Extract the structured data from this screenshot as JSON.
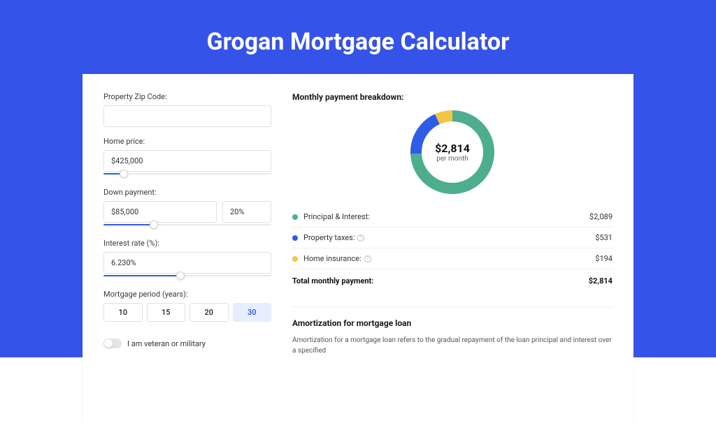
{
  "colors": {
    "page_bg": "#3553e8",
    "card_bg": "#ffffff",
    "input_border": "#dcdfe6",
    "text": "#333333",
    "title_text": "#ffffff",
    "accent_blue": "#2f5ce6",
    "period_active_bg": "#e7eeff",
    "slider_track": "#e8e8e8",
    "divider": "#f0f0f0",
    "info_icon": "#bbbbbb"
  },
  "title": "Grogan Mortgage Calculator",
  "form": {
    "zip": {
      "label": "Property Zip Code:",
      "value": ""
    },
    "home_price": {
      "label": "Home price:",
      "value": "$425,000",
      "slider_pct": 12
    },
    "down_payment": {
      "label": "Down payment:",
      "value": "$85,000",
      "pct": "20%",
      "slider_pct": 30
    },
    "interest_rate": {
      "label": "Interest rate (%):",
      "value": "6.230%",
      "slider_pct": 46
    },
    "period": {
      "label": "Mortgage period (years):",
      "options": [
        "10",
        "15",
        "20",
        "30"
      ],
      "selected": "30"
    },
    "veteran": {
      "label": "I am veteran or military",
      "checked": false
    }
  },
  "breakdown": {
    "title": "Monthly payment breakdown:",
    "donut": {
      "center_value": "$2,814",
      "center_sub": "per month",
      "stroke_width": 16,
      "radius": 52,
      "series": [
        {
          "key": "principal_interest",
          "color": "#4cae8e",
          "value": 2089
        },
        {
          "key": "property_taxes",
          "color": "#2f5ce6",
          "value": 531
        },
        {
          "key": "home_insurance",
          "color": "#f4c542",
          "value": 194
        }
      ]
    },
    "rows": [
      {
        "label": "Principal & Interest:",
        "value": "$2,089",
        "color": "#4cae8e",
        "info": false
      },
      {
        "label": "Property taxes:",
        "value": "$531",
        "color": "#2f5ce6",
        "info": true
      },
      {
        "label": "Home insurance:",
        "value": "$194",
        "color": "#f4c542",
        "info": true
      }
    ],
    "total": {
      "label": "Total monthly payment:",
      "value": "$2,814"
    }
  },
  "amortization": {
    "title": "Amortization for mortgage loan",
    "body": "Amortization for a mortgage loan refers to the gradual repayment of the loan principal and interest over a specified"
  }
}
